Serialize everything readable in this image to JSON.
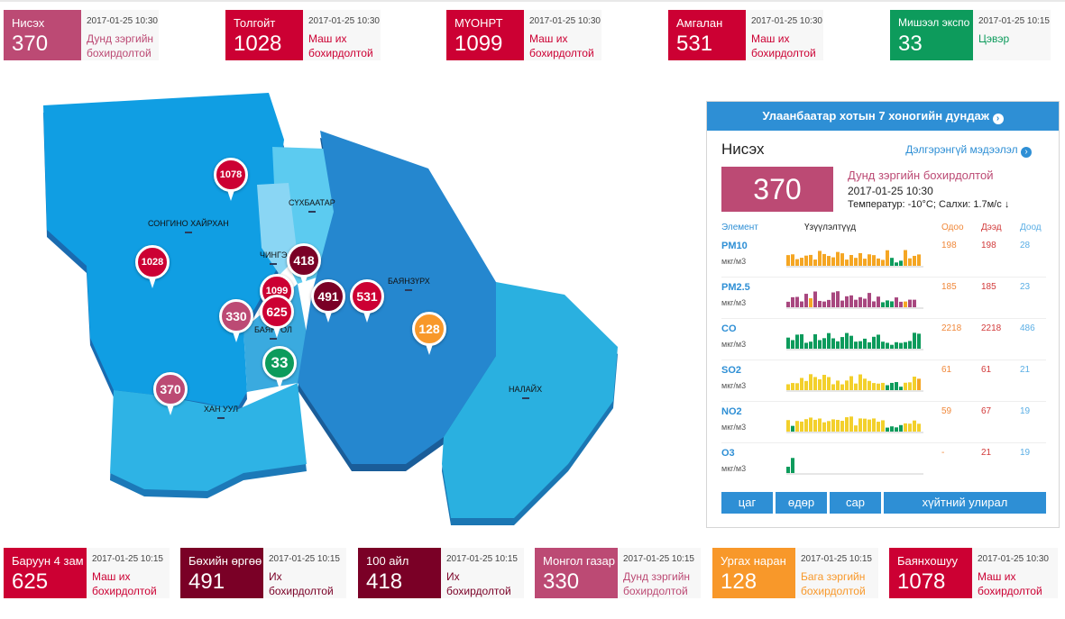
{
  "top_cards": [
    {
      "name": "Нисэх",
      "value": "370",
      "time": "2017-01-25 10:30",
      "status": "Дунд зэргийн бохирдолтой"
    },
    {
      "name": "Толгойт",
      "value": "1028",
      "time": "2017-01-25 10:30",
      "status": "Маш их бохирдолтой"
    },
    {
      "name": "МҮОНРТ",
      "value": "1099",
      "time": "2017-01-25 10:30",
      "status": "Маш их бохирдолтой"
    },
    {
      "name": "Амгалан",
      "value": "531",
      "time": "2017-01-25 10:30",
      "status": "Маш их бохирдолтой"
    },
    {
      "name": "Мишээл экспо",
      "value": "33",
      "time": "2017-01-25 10:15",
      "status": "Цэвэр"
    }
  ],
  "bottom_cards": [
    {
      "name": "Баруун 4 зам",
      "value": "625",
      "time": "2017-01-25 10:15",
      "status": "Маш их бохирдолтой"
    },
    {
      "name": "Бөхийн өргөө",
      "value": "491",
      "time": "2017-01-25 10:15",
      "status": "Их бохирдолтой"
    },
    {
      "name": "100 айл",
      "value": "418",
      "time": "2017-01-25 10:15",
      "status": "Их бохирдолтой"
    },
    {
      "name": "Монгол газар",
      "value": "330",
      "time": "2017-01-25 10:15",
      "status": "Дунд зэргийн бохирдолтой"
    },
    {
      "name": "Ургах наран",
      "value": "128",
      "time": "2017-01-25 10:15",
      "status": "Бага зэргийн бохирдолтой"
    },
    {
      "name": "Баянхошуу",
      "value": "1078",
      "time": "2017-01-25 10:30",
      "status": "Маш их бохирдолтой"
    }
  ],
  "map": {
    "districts": [
      "СОНГИНО ХАЙРХАН",
      "СҮХБААТАР",
      "ЧИНГЭ",
      "БАЯНЗҮРХ",
      "БАЯНГОЛ",
      "ХАН УУЛ",
      "НАЛАЙХ"
    ],
    "pins": [
      "1078",
      "1028",
      "418",
      "1099",
      "491",
      "531",
      "330",
      "625",
      "128",
      "33",
      "370"
    ]
  },
  "panel": {
    "header": "Улаанбаатар хотын 7 хоногийн дундаж",
    "station": "Нисэх",
    "detail_link": "Дэлгэрэнгүй мэдээлэл",
    "value": "370",
    "status": "Дунд зэргийн бохирдолтой",
    "time": "2017-01-25 10:30",
    "temp": "Температур: -10°C; Салхи: 1.7м/с",
    "col_element": "Элемент",
    "col_indicator": "Үзүүлэлтүүд",
    "col_now": "Одоо",
    "col_high": "Дээд",
    "col_low": "Доод",
    "rows": [
      {
        "el": "PM10",
        "unit": "мкг/м3",
        "now": "198",
        "high": "198",
        "low": "28"
      },
      {
        "el": "PM2.5",
        "unit": "мкг/м3",
        "now": "185",
        "high": "185",
        "low": "23"
      },
      {
        "el": "CO",
        "unit": "мкг/м3",
        "now": "2218",
        "high": "2218",
        "low": "486"
      },
      {
        "el": "SO2",
        "unit": "мкг/м3",
        "now": "61",
        "high": "61",
        "low": "21"
      },
      {
        "el": "NO2",
        "unit": "мкг/м3",
        "now": "59",
        "high": "67",
        "low": "19"
      },
      {
        "el": "O3",
        "unit": "мкг/м3",
        "now": "-",
        "high": "21",
        "low": "19"
      }
    ],
    "tabs": [
      "цаг",
      "өдөр",
      "сар",
      "хүйтний улирал"
    ]
  },
  "colors": {
    "red": "#cc0033",
    "pink": "#bc4a74",
    "dark": "#7a0026",
    "green": "#0d9b5c",
    "orange": "#f8982a",
    "blue": "#2e8fd5"
  }
}
